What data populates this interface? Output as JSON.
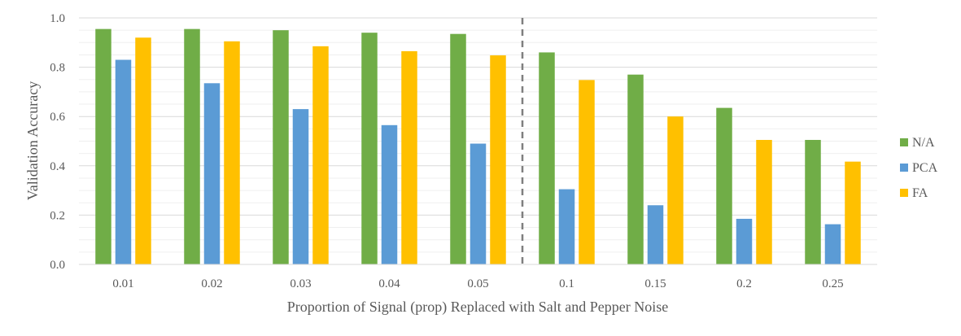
{
  "chart_data": {
    "type": "bar",
    "title": "",
    "xlabel": "Proportion of Signal (prop) Replaced with Salt and Pepper Noise",
    "ylabel": "Validation Accuracy",
    "categories": [
      "0.01",
      "0.02",
      "0.03",
      "0.04",
      "0.05",
      "0.1",
      "0.15",
      "0.2",
      "0.25"
    ],
    "ylim": [
      0,
      1.0
    ],
    "yticks": [
      "0.0",
      "0.2",
      "0.4",
      "0.6",
      "0.8",
      "1.0"
    ],
    "grid": true,
    "legend_position": "right",
    "divider_after_category": "0.05",
    "series": [
      {
        "name": "N/A",
        "color": "#70AD47",
        "values": [
          0.955,
          0.955,
          0.95,
          0.94,
          0.935,
          0.86,
          0.77,
          0.635,
          0.505
        ]
      },
      {
        "name": "PCA",
        "color": "#5B9BD5",
        "values": [
          0.83,
          0.735,
          0.63,
          0.565,
          0.49,
          0.305,
          0.24,
          0.185,
          0.163
        ]
      },
      {
        "name": "FA",
        "color": "#FFC000",
        "values": [
          0.92,
          0.905,
          0.885,
          0.865,
          0.848,
          0.748,
          0.6,
          0.505,
          0.417
        ]
      }
    ]
  }
}
